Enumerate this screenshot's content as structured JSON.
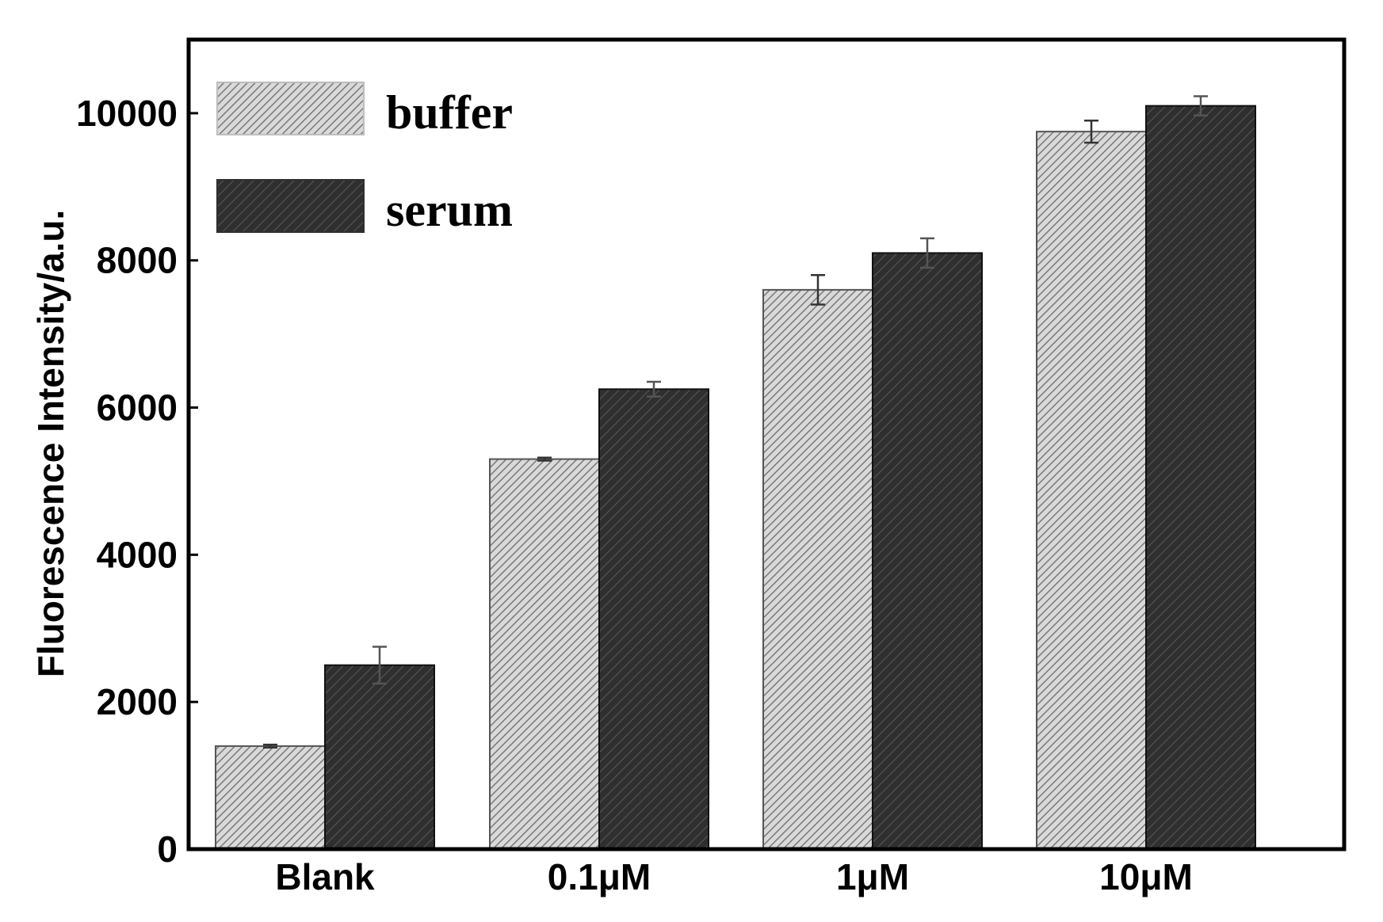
{
  "chart_data": {
    "type": "bar",
    "title": "",
    "xlabel": "",
    "ylabel": "Fluorescence Intensity/a.u.",
    "categories": [
      "Blank",
      "0.1μM",
      "1μM",
      "10μM"
    ],
    "ylim": [
      0,
      11000
    ],
    "yticks": [
      0,
      2000,
      4000,
      6000,
      8000,
      10000
    ],
    "grid": false,
    "legend_position": "top-left",
    "series": [
      {
        "name": "buffer",
        "values": [
          1400,
          5300,
          7600,
          9750
        ],
        "errors": [
          20,
          20,
          200,
          150
        ],
        "pattern": "light-hatch",
        "color": "#bdbdbd"
      },
      {
        "name": "serum",
        "values": [
          2500,
          6250,
          8100,
          10100
        ],
        "errors": [
          250,
          100,
          200,
          130
        ],
        "pattern": "dark-hatch",
        "color": "#3a3a3a"
      }
    ]
  }
}
